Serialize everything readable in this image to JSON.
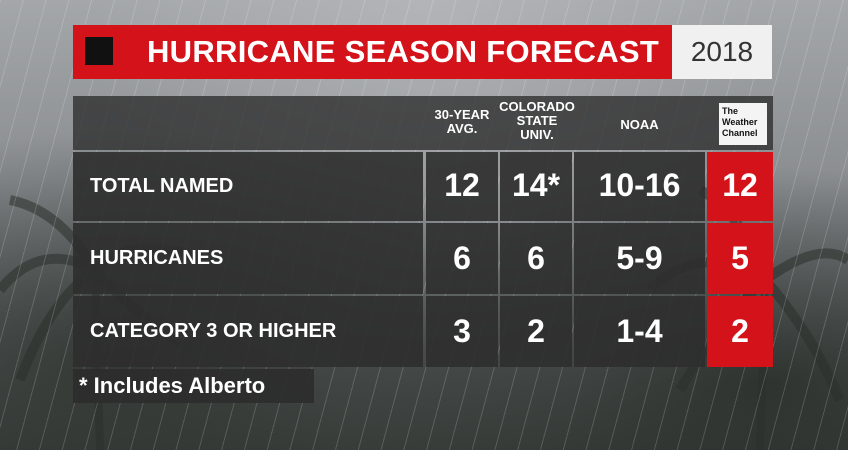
{
  "header": {
    "title": "HURRICANE SEASON FORECAST",
    "year": "2018"
  },
  "columns": {
    "avg": [
      "30-YEAR",
      "AVG."
    ],
    "csu": [
      "COLORADO",
      "STATE",
      "UNIV."
    ],
    "noaa": "NOAA",
    "twc_logo": [
      "The",
      "Weather",
      "Channel"
    ]
  },
  "rows": [
    {
      "label": "TOTAL NAMED",
      "avg": "12",
      "csu": "14*",
      "noaa": "10-16",
      "twc": "12"
    },
    {
      "label": "HURRICANES",
      "avg": "6",
      "csu": "6",
      "noaa": "5-9",
      "twc": "5"
    },
    {
      "label": "CATEGORY 3 OR HIGHER",
      "avg": "3",
      "csu": "2",
      "noaa": "1-4",
      "twc": "2"
    }
  ],
  "footnote": "* Includes Alberto",
  "colors": {
    "accent": "#d4121a",
    "panel": "#2d2d2d"
  },
  "icons": {
    "header_mark": "black-square-icon",
    "logo": "weather-channel-logo-icon"
  }
}
